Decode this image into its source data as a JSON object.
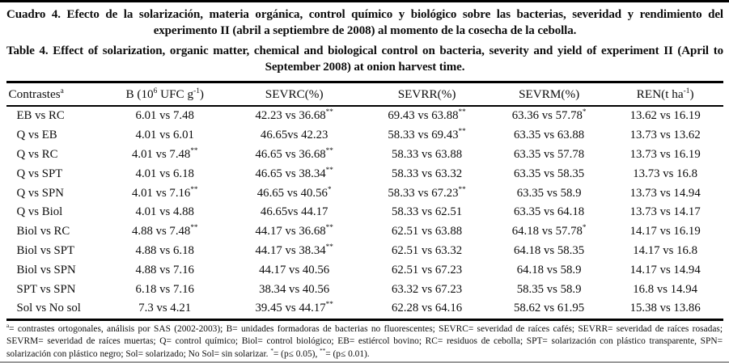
{
  "page": {
    "caption_spanish": "Cuadro 4. Efecto de la solarización, materia orgánica, control químico y biológico sobre las bacterias, severidad y rendimiento del experimento II (abril a septiembre de 2008) al momento de la cosecha de la cebolla.",
    "caption_english": "Table 4. Effect of solarization, organic matter, chemical and biological control on bacteria, severity and yield of experiment II (April to September 2008) at onion harvest time."
  },
  "table": {
    "columns": [
      "Contrastes^{a}",
      "B (10^{6} UFC g^{-1})",
      "SEVRC(%)",
      "SEVRR(%)",
      "SEVRM(%)",
      "REN(t ha^{-1})"
    ],
    "rows": [
      [
        "EB vs RC",
        "6.01 vs 7.48",
        "42.23 vs 36.68^{**}",
        "69.43 vs 63.88^{**}",
        "63.36 vs 57.78^{*}",
        "13.62 vs 16.19"
      ],
      [
        "Q vs EB",
        "4.01 vs 6.01",
        "46.65vs 42.23",
        "58.33 vs 69.43^{**}",
        "63.35 vs 63.88",
        "13.73 vs 13.62"
      ],
      [
        "Q vs RC",
        "4.01 vs 7.48^{**}",
        "46.65 vs 36.68^{**}",
        "58.33 vs 63.88",
        "63.35 vs 57.78",
        "13.73 vs 16.19"
      ],
      [
        "Q vs SPT",
        "4.01 vs 6.18",
        "46.65 vs 38.34^{**}",
        "58.33 vs 63.32",
        "63.35 vs 58.35",
        "13.73 vs 16.8"
      ],
      [
        "Q vs SPN",
        "4.01 vs 7.16^{**}",
        "46.65 vs 40.56^{*}",
        "58.33 vs 67.23^{**}",
        "63.35 vs 58.9",
        "13.73 vs 14.94"
      ],
      [
        "Q vs Biol",
        "4.01 vs 4.88",
        "46.65vs 44.17",
        "58.33 vs 62.51",
        "63.35 vs 64.18",
        "13.73 vs 14.17"
      ],
      [
        "Biol vs RC",
        "4.88 vs 7.48^{**}",
        "44.17 vs 36.68^{**}",
        "62.51 vs 63.88",
        "64.18 vs 57.78^{*}",
        "14.17 vs 16.19"
      ],
      [
        "Biol vs SPT",
        "4.88 vs 6.18",
        "44.17 vs 38.34^{**}",
        "62.51 vs 63.32",
        "64.18 vs 58.35",
        "14.17 vs 16.8"
      ],
      [
        "Biol vs SPN",
        "4.88 vs 7.16",
        "44.17 vs 40.56",
        "62.51 vs 67.23",
        "64.18 vs 58.9",
        "14.17 vs 14.94"
      ],
      [
        "SPT vs SPN",
        "6.18 vs 7.16",
        "38.34 vs 40.56",
        "63.32 vs 67.23",
        "58.35 vs 58.9",
        "16.8 vs 14.94"
      ],
      [
        "Sol vs No sol",
        "7.3 vs 4.21",
        "39.45 vs 44.17^{**}",
        "62.28 vs 64.16",
        "58.62 vs 61.95",
        "15.38 vs 13.86"
      ]
    ]
  },
  "footnote": "^{a}= contrastes ortogonales, análisis por SAS (2002-2003); B= unidades formadoras de bacterias no fluorescentes; SEVRC= severidad de raíces cafés; SEVRR= severidad de raíces rosadas; SEVRM= severidad de raíces muertas; Q= control químico; Biol= control biológico; EB= estiércol bovino; RC= residuos de cebolla; SPT= solarización con plástico transparente, SPN= solarización con plástico negro; Sol= solarizado; No Sol= sin solarizar. ^{*}= (p≤ 0.05), ^{**}= (p≤ 0.01).",
  "colors": {
    "text": "#0d0d0d",
    "rule": "#000000",
    "background": "#ffffff"
  }
}
